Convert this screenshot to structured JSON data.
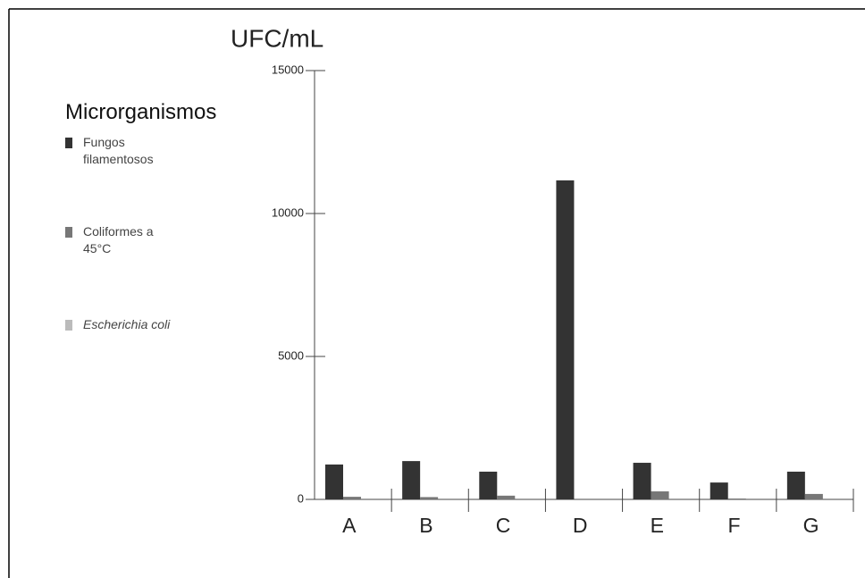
{
  "chart_data": {
    "type": "bar",
    "y_axis_label": "UFC/mL",
    "legend_title": "Microrganismos",
    "categories": [
      "A",
      "B",
      "C",
      "D",
      "E",
      "F",
      "G"
    ],
    "series": [
      {
        "name": "Fungos filamentosos",
        "color": "#333333",
        "values": [
          1220,
          1340,
          970,
          11160,
          1280,
          590,
          970
        ]
      },
      {
        "name": "Coliformes a 45°C",
        "color": "#777777",
        "values": [
          90,
          80,
          130,
          0,
          280,
          30,
          190
        ]
      },
      {
        "name": "Escherichia coli",
        "color": "#bbbbbb",
        "values": [
          0,
          0,
          0,
          0,
          0,
          0,
          0
        ]
      }
    ],
    "ylim": [
      0,
      15000
    ],
    "yticks": [
      0,
      5000,
      10000,
      15000
    ],
    "legend": "left"
  }
}
